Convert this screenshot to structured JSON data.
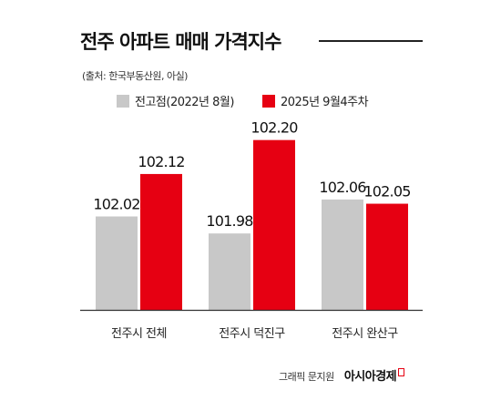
{
  "header": {
    "title": "전주 아파트 매매 가격지수",
    "source": "(출처: 한국부동산원, 아실)"
  },
  "footer": {
    "credit": "그래픽 문지원",
    "brand": "아시아경제"
  },
  "colors": {
    "series_prev": "#c8c8c8",
    "series_now": "#e60012",
    "axis": "#333333",
    "text": "#222222"
  },
  "chart_data": {
    "type": "bar",
    "title": "전주 아파트 매매 가격지수",
    "xlabel": "",
    "ylabel": "",
    "categories": [
      "전주시 전체",
      "전주시 덕진구",
      "전주시 완산구"
    ],
    "series": [
      {
        "name": "전고점(2022년 8월)",
        "values": [
          102.02,
          101.98,
          102.06
        ],
        "labels": [
          "102.02",
          "101.98",
          "102.06"
        ]
      },
      {
        "name": "2025년 9월4주차",
        "values": [
          102.12,
          102.2,
          102.05
        ],
        "labels": [
          "102.12",
          "102.20",
          "102.05"
        ]
      }
    ],
    "ylim": [
      101.8,
      102.21
    ],
    "grid": false,
    "legend_position": "top-left"
  }
}
